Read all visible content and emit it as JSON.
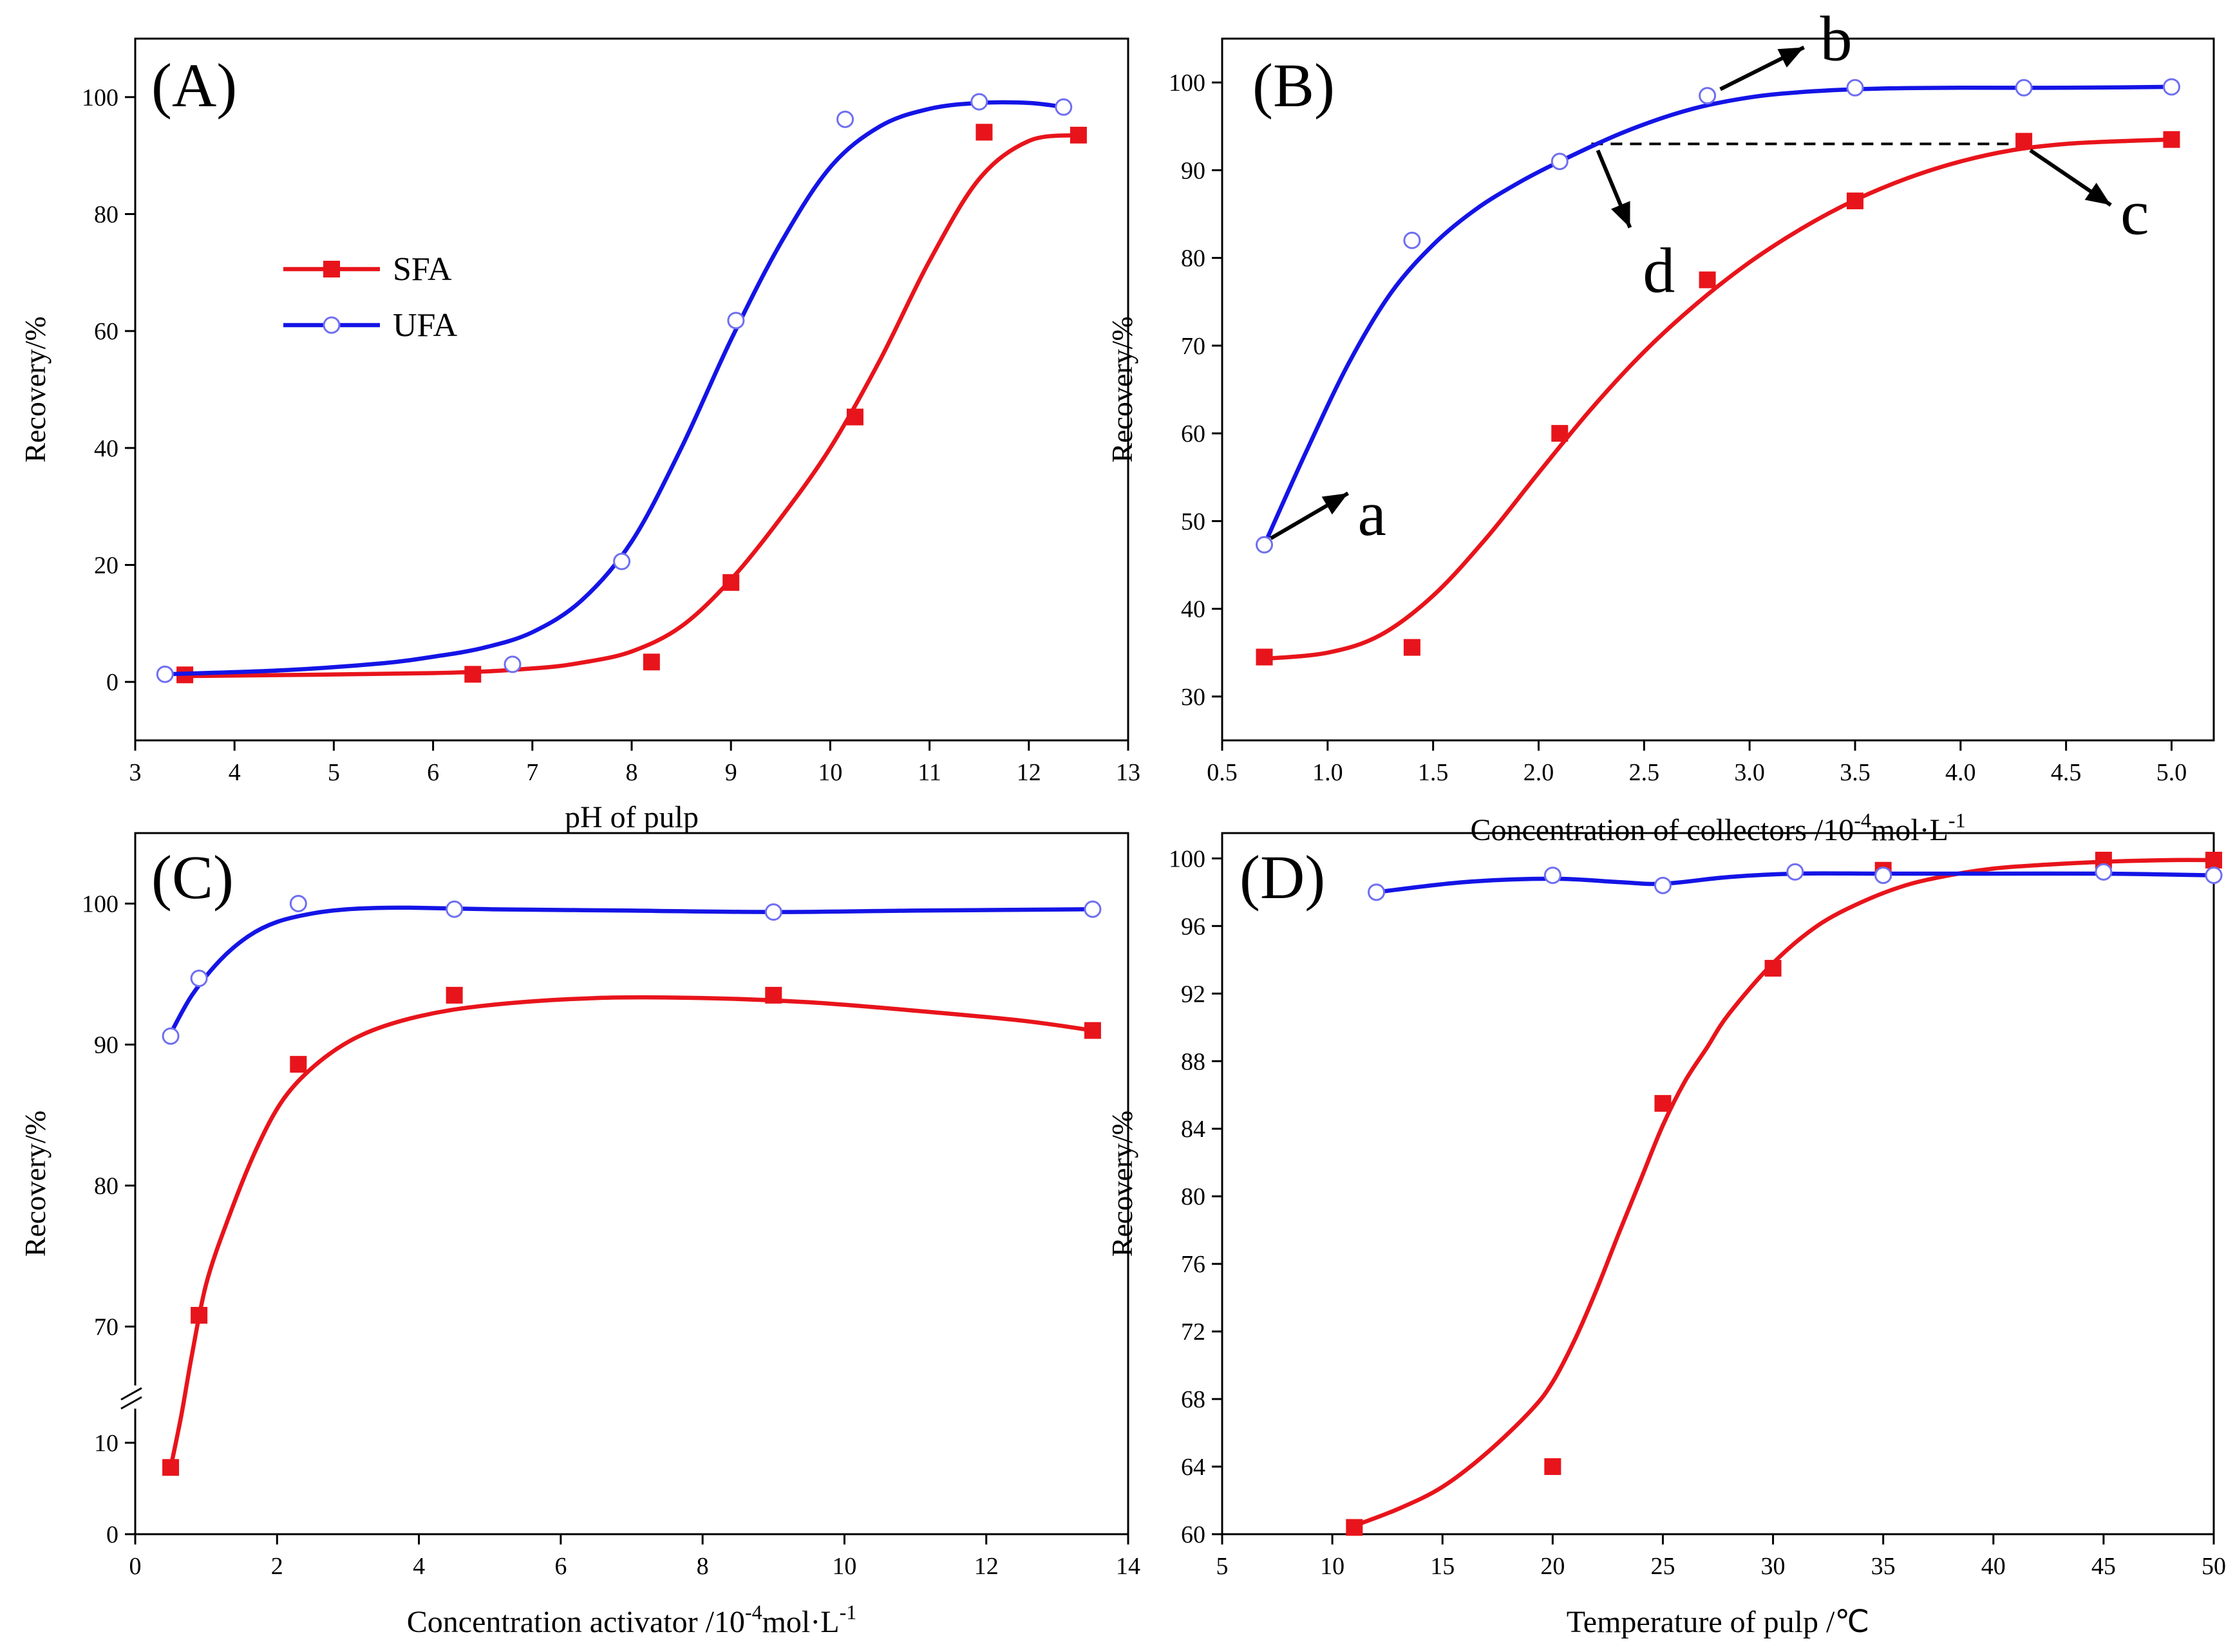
{
  "figure": {
    "colors": {
      "sfa": "#e8141b",
      "ufa": "#1414e6",
      "axis": "#000000"
    },
    "legend": {
      "sfa_label": "SFA",
      "ufa_label": "UFA"
    }
  },
  "chart_data": [
    {
      "panel": "(A)",
      "type": "scatter",
      "xlabel": "pH of pulp",
      "ylabel": "Recovery/%",
      "xlim": [
        3,
        13
      ],
      "ylim": [
        -10,
        110
      ],
      "xticks": [
        3,
        4,
        5,
        6,
        7,
        8,
        9,
        10,
        11,
        12,
        13
      ],
      "yticks": [
        0,
        20,
        40,
        60,
        80,
        100
      ],
      "legend_position": "upper-left",
      "series": [
        {
          "name": "SFA",
          "marker": "filled-square",
          "x": [
            3.5,
            6.4,
            8.2,
            9.0,
            10.25,
            11.55,
            12.5
          ],
          "y": [
            1.2,
            1.3,
            3.4,
            17.0,
            45.3,
            94.0,
            93.5
          ],
          "fit_x": [
            3.5,
            6.0,
            7.0,
            7.5,
            8.0,
            8.5,
            9.0,
            9.5,
            10.0,
            10.5,
            11.0,
            11.5,
            12.0,
            12.5
          ],
          "fit_y": [
            1.0,
            1.5,
            2.3,
            3.3,
            5.2,
            9.5,
            17.5,
            28.0,
            40.0,
            55.0,
            72.0,
            86.0,
            92.5,
            93.5
          ]
        },
        {
          "name": "UFA",
          "marker": "open-circle",
          "x": [
            3.3,
            6.8,
            7.9,
            9.05,
            10.15,
            11.5,
            12.35
          ],
          "y": [
            1.3,
            3.0,
            20.6,
            61.8,
            96.2,
            99.2,
            98.3
          ],
          "fit_x": [
            3.3,
            4.5,
            5.5,
            6.0,
            6.5,
            7.0,
            7.5,
            8.0,
            8.5,
            9.0,
            9.5,
            10.0,
            10.5,
            11.0,
            11.5,
            12.0,
            12.35
          ],
          "fit_y": [
            1.3,
            2.0,
            3.2,
            4.3,
            5.8,
            8.5,
            14.0,
            24.0,
            40.0,
            58.5,
            75.0,
            88.0,
            95.0,
            98.0,
            99.0,
            99.0,
            98.3
          ]
        }
      ]
    },
    {
      "panel": "(B)",
      "type": "scatter",
      "xlabel": "Concentration of collectors /10",
      "xlabel_sup": "-4",
      "xlabel_end": "mol·L",
      "xlabel_sup2": "-1",
      "ylabel": "Recovery/%",
      "xlim": [
        0.5,
        5.2
      ],
      "ylim": [
        25,
        105
      ],
      "xticks": [
        0.5,
        1.0,
        1.5,
        2.0,
        2.5,
        3.0,
        3.5,
        4.0,
        4.5,
        5.0
      ],
      "yticks": [
        30,
        40,
        50,
        60,
        70,
        80,
        90,
        100
      ],
      "series": [
        {
          "name": "SFA",
          "marker": "filled-square",
          "x": [
            0.7,
            1.4,
            2.1,
            2.8,
            3.5,
            4.3,
            5.0
          ],
          "y": [
            34.5,
            35.6,
            60.0,
            77.5,
            86.5,
            93.3,
            93.5
          ],
          "fit_x": [
            0.7,
            1.0,
            1.25,
            1.5,
            1.75,
            2.0,
            2.25,
            2.5,
            2.75,
            3.0,
            3.25,
            3.5,
            3.75,
            4.0,
            4.25,
            4.5,
            4.75,
            5.0
          ],
          "fit_y": [
            34.3,
            35.0,
            37.0,
            41.5,
            48.0,
            55.5,
            62.8,
            69.3,
            74.8,
            79.5,
            83.4,
            86.6,
            89.1,
            91.0,
            92.3,
            93.0,
            93.3,
            93.5
          ]
        },
        {
          "name": "UFA",
          "marker": "open-circle",
          "x": [
            0.7,
            1.4,
            2.1,
            2.8,
            3.5,
            4.3,
            5.0
          ],
          "y": [
            47.3,
            82.0,
            91.0,
            98.5,
            99.4,
            99.4,
            99.5
          ],
          "fit_x": [
            0.7,
            0.9,
            1.1,
            1.3,
            1.5,
            1.7,
            1.9,
            2.1,
            2.4,
            2.7,
            3.0,
            3.3,
            3.6,
            4.0,
            4.5,
            5.0
          ],
          "fit_y": [
            47.3,
            58.0,
            68.0,
            76.0,
            81.5,
            85.5,
            88.5,
            91.0,
            94.3,
            96.8,
            98.3,
            99.0,
            99.3,
            99.4,
            99.4,
            99.5
          ]
        }
      ],
      "annotations": [
        {
          "label": "a",
          "x": 0.7,
          "y": 47.3
        },
        {
          "label": "b",
          "x": 2.8,
          "y": 98.5
        },
        {
          "label": "c",
          "x": 4.3,
          "y": 93.0
        },
        {
          "label": "d",
          "x": 2.25,
          "y": 93.0
        }
      ],
      "reference_line": {
        "y": 93.0,
        "x_from": 2.25,
        "x_to": 4.3,
        "style": "dashed"
      }
    },
    {
      "panel": "(C)",
      "type": "scatter",
      "xlabel": "Concentration  activator /10",
      "xlabel_sup": "-4",
      "xlabel_end": "mol·L",
      "xlabel_sup2": "-1",
      "ylabel": "Recovery/%",
      "xlim": [
        0,
        14
      ],
      "ylim_lower_segment": [
        0,
        15
      ],
      "ylim_upper_segment": [
        65,
        105
      ],
      "axis_break": true,
      "xticks": [
        0,
        2,
        4,
        6,
        8,
        10,
        12,
        14
      ],
      "yticks": [
        0,
        10,
        70,
        80,
        90,
        100
      ],
      "series": [
        {
          "name": "SFA",
          "marker": "filled-square",
          "x": [
            0.5,
            0.9,
            2.3,
            4.5,
            9.0,
            13.5
          ],
          "y": [
            7.3,
            70.8,
            88.6,
            93.5,
            93.5,
            91.0
          ],
          "fit_x": [
            0.5,
            0.65,
            0.8,
            1.0,
            1.3,
            1.7,
            2.1,
            2.6,
            3.2,
            4.0,
            5.0,
            6.5,
            8.0,
            9.5,
            11.0,
            12.5,
            13.5
          ],
          "fit_y": [
            7.3,
            13.0,
            68.0,
            73.0,
            77.5,
            82.5,
            86.2,
            88.8,
            90.7,
            92.0,
            92.8,
            93.3,
            93.3,
            93.0,
            92.4,
            91.7,
            91.0
          ]
        },
        {
          "name": "UFA",
          "marker": "open-circle",
          "x": [
            0.5,
            0.9,
            2.3,
            4.5,
            9.0,
            13.5
          ],
          "y": [
            90.6,
            94.7,
            100.0,
            99.6,
            99.4,
            99.6
          ],
          "fit_x": [
            0.5,
            0.8,
            1.2,
            1.6,
            2.0,
            2.5,
            3.0,
            3.5,
            4.0,
            5.0,
            7.0,
            9.0,
            11.0,
            13.5
          ],
          "fit_y": [
            90.8,
            93.5,
            96.0,
            97.7,
            98.7,
            99.3,
            99.6,
            99.7,
            99.7,
            99.6,
            99.5,
            99.4,
            99.5,
            99.6
          ]
        }
      ]
    },
    {
      "panel": "(D)",
      "type": "scatter",
      "xlabel": "Temperature of pulp /℃",
      "ylabel": "Recovery/%",
      "xlim": [
        5,
        50
      ],
      "ylim": [
        60,
        101.5
      ],
      "xticks": [
        5,
        10,
        15,
        20,
        25,
        30,
        35,
        40,
        45,
        50
      ],
      "yticks": [
        60,
        64,
        68,
        72,
        76,
        80,
        84,
        88,
        92,
        96,
        100
      ],
      "series": [
        {
          "name": "SFA",
          "marker": "filled-square",
          "x": [
            11,
            20,
            25,
            30,
            35,
            45,
            50
          ],
          "y": [
            60.4,
            64.0,
            85.5,
            93.5,
            99.3,
            99.9,
            99.9
          ],
          "fit_x": [
            11,
            13,
            15,
            17,
            19,
            20,
            21,
            22,
            23,
            24,
            25,
            26,
            27,
            28,
            30,
            32,
            34,
            36,
            38,
            40,
            42,
            45,
            48,
            50
          ],
          "fit_y": [
            60.5,
            61.5,
            62.8,
            64.8,
            67.3,
            69.0,
            71.5,
            74.5,
            77.8,
            81.0,
            84.2,
            86.8,
            88.8,
            90.8,
            93.8,
            96.0,
            97.4,
            98.4,
            99.0,
            99.4,
            99.6,
            99.8,
            99.9,
            99.9
          ]
        },
        {
          "name": "UFA",
          "marker": "open-circle",
          "x": [
            12,
            20,
            25,
            31,
            35,
            45,
            50
          ],
          "y": [
            98.0,
            99.0,
            98.4,
            99.2,
            99.0,
            99.2,
            99.0
          ],
          "fit_x": [
            12,
            16,
            20,
            23,
            25,
            28,
            31,
            35,
            40,
            45,
            50
          ],
          "fit_y": [
            98.0,
            98.6,
            98.8,
            98.6,
            98.5,
            98.9,
            99.1,
            99.1,
            99.1,
            99.1,
            99.0
          ]
        }
      ]
    }
  ]
}
